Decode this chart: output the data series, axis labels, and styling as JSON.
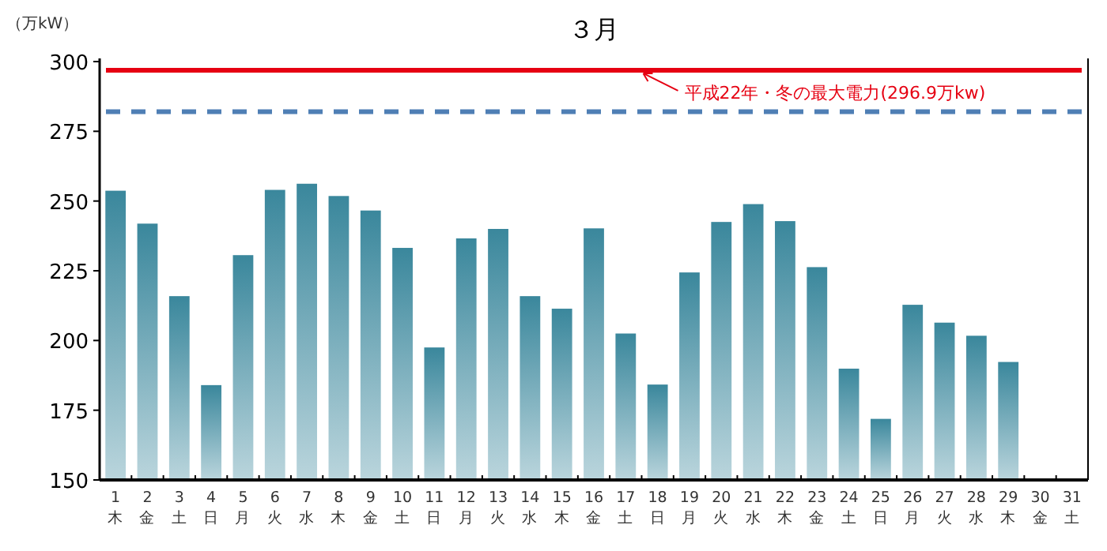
{
  "chart_data": {
    "type": "bar",
    "title": "３月",
    "ylabel": "（万kW）",
    "categories": [
      "1\n木",
      "2\n金",
      "3\n土",
      "4\n日",
      "5\n月",
      "6\n火",
      "7\n水",
      "8\n木",
      "9\n金",
      "10\n土",
      "11\n日",
      "12\n月",
      "13\n火",
      "14\n水",
      "15\n木",
      "16\n金",
      "17\n土",
      "18\n日",
      "19\n月",
      "20\n火",
      "21\n水",
      "22\n木",
      "23\n金",
      "24\n土",
      "25\n日",
      "26\n月",
      "27\n火",
      "28\n水",
      "29\n木",
      "30\n金",
      "31\n土"
    ],
    "series": [
      {
        "color": "#3a879c",
        "values": [
          253.7,
          241.9,
          215.9,
          184,
          230.6,
          254,
          256.2,
          251.8,
          246.6,
          233.2,
          197.5,
          236.6,
          240,
          215.9,
          211.4,
          240.2,
          202.5,
          184.2,
          224.4,
          242.5,
          248.9,
          242.8,
          226.3,
          189.9,
          171.9,
          212.8,
          206.4,
          201.7,
          192.3,
          null,
          null
        ]
      }
    ],
    "ylim": [
      150,
      300
    ],
    "yticks": [
      150,
      175,
      200,
      225,
      250,
      275,
      300
    ],
    "grid": false,
    "ref_lines": [
      {
        "axis": "y",
        "value": 296.9,
        "label": "平成22年・冬の最大電力(296.9万kw)",
        "color": "#e60012",
        "line_style": "solid"
      },
      {
        "axis": "y",
        "value": 282,
        "color": "#4f7fb5",
        "line_style": "dashed"
      }
    ]
  }
}
